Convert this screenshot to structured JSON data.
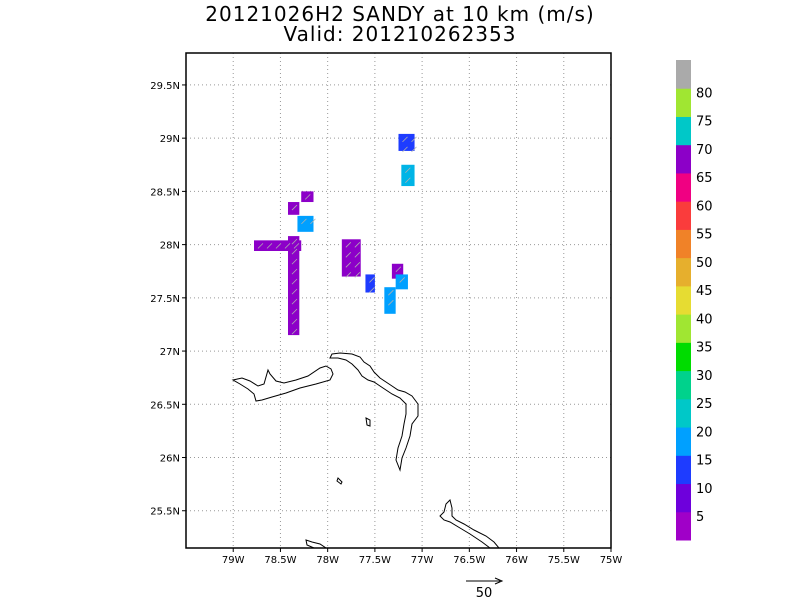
{
  "title": {
    "line1": "20121026H2 SANDY at 10 km (m/s)",
    "line2": "Valid: 201210262353"
  },
  "chart_data": {
    "type": "heatmap",
    "title": "20121026H2 SANDY at 10 km (m/s)",
    "subtitle": "Valid: 201210262353",
    "xlim": [
      -79.5,
      -75
    ],
    "ylim": [
      25.15,
      29.8
    ],
    "x_ticks": [
      -79,
      -78.5,
      -78,
      -77.5,
      -77,
      -76.5,
      -76,
      -75.5,
      -75
    ],
    "x_tick_labels": [
      "79W",
      "78.5W",
      "78W",
      "77.5W",
      "77W",
      "76.5W",
      "76W",
      "75.5W",
      "75W"
    ],
    "y_ticks": [
      25.5,
      26,
      26.5,
      27,
      27.5,
      28,
      28.5,
      29,
      29.5
    ],
    "y_tick_labels": [
      "25.5N",
      "26N",
      "26.5N",
      "27N",
      "27.5N",
      "28N",
      "28.5N",
      "29N",
      "29.5N"
    ],
    "grid": true,
    "colorbar": {
      "labels": [
        "5",
        "10",
        "15",
        "20",
        "25",
        "30",
        "35",
        "40",
        "45",
        "50",
        "55",
        "60",
        "65",
        "70",
        "75",
        "80"
      ],
      "colors": [
        "#a000c8",
        "#6e00dc",
        "#1e3cff",
        "#00a0ff",
        "#00c8c8",
        "#00d28c",
        "#00dc00",
        "#a0e632",
        "#e6dc32",
        "#e6af2d",
        "#f08228",
        "#fa3c3c",
        "#f00082",
        "#8c00c8",
        "#00c8c8",
        "#a0e632",
        "#aaaaaa"
      ]
    },
    "wind_cells": [
      {
        "lon": -78.78,
        "lat": 28.04,
        "lon2": -78.28,
        "lat2": 27.94,
        "level": "5-10"
      },
      {
        "lon": -78.42,
        "lat": 28.08,
        "lon2": -78.3,
        "lat2": 27.15,
        "level": "5-10"
      },
      {
        "lon": -78.42,
        "lat": 28.4,
        "lon2": -78.3,
        "lat2": 28.28,
        "level": "5-10"
      },
      {
        "lon": -78.28,
        "lat": 28.5,
        "lon2": -78.15,
        "lat2": 28.4,
        "level": "5-10"
      },
      {
        "lon": -78.32,
        "lat": 28.27,
        "lon2": -78.15,
        "lat2": 28.12,
        "level": "15-25"
      },
      {
        "lon": -77.85,
        "lat": 28.05,
        "lon2": -77.65,
        "lat2": 27.7,
        "level": "5-10"
      },
      {
        "lon": -77.6,
        "lat": 27.72,
        "lon2": -77.5,
        "lat2": 27.55,
        "level": "10-15"
      },
      {
        "lon": -77.32,
        "lat": 27.82,
        "lon2": -77.2,
        "lat2": 27.68,
        "level": "5-10"
      },
      {
        "lon": -77.28,
        "lat": 27.72,
        "lon2": -77.15,
        "lat2": 27.58,
        "level": "15-25"
      },
      {
        "lon": -77.4,
        "lat": 27.6,
        "lon2": -77.28,
        "lat2": 27.35,
        "level": "15-25"
      },
      {
        "lon": -77.25,
        "lat": 29.04,
        "lon2": -77.08,
        "lat2": 28.88,
        "level": "10-15"
      },
      {
        "lon": -77.22,
        "lat": 28.75,
        "lon2": -77.08,
        "lat2": 28.55,
        "level": "10-25"
      }
    ],
    "reference_vector": {
      "label": "50",
      "units": "m/s"
    }
  }
}
